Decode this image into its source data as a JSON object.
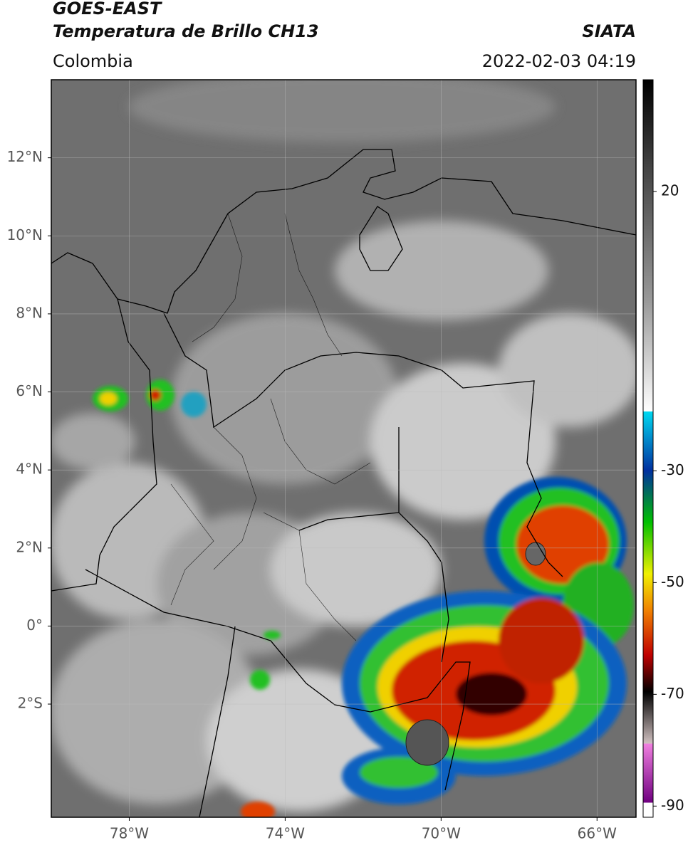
{
  "header": {
    "satellite": "GOES-EAST",
    "product": "Temperatura de Brillo CH13",
    "agency": "SIATA",
    "region": "Colombia",
    "datetime": "2022-02-03 04:19"
  },
  "map": {
    "latlim": [
      -4.9,
      14
    ],
    "lonlim": [
      -80,
      -65
    ],
    "latticks": [
      {
        "value": 12,
        "label": "12°N"
      },
      {
        "value": 10,
        "label": "10°N"
      },
      {
        "value": 8,
        "label": "8°N"
      },
      {
        "value": 6,
        "label": "6°N"
      },
      {
        "value": 4,
        "label": "4°N"
      },
      {
        "value": 2,
        "label": "2°N"
      },
      {
        "value": 0,
        "label": "0°"
      },
      {
        "value": -2,
        "label": "2°S"
      }
    ],
    "lonticks": [
      {
        "value": -78,
        "label": "78°W"
      },
      {
        "value": -74,
        "label": "74°W"
      },
      {
        "value": -70,
        "label": "70°W"
      },
      {
        "value": -66,
        "label": "66°W"
      }
    ],
    "grid": true
  },
  "colorbar": {
    "lim": [
      -92,
      40
    ],
    "ticks": [
      20,
      -30,
      -50,
      -70,
      -90
    ]
  }
}
